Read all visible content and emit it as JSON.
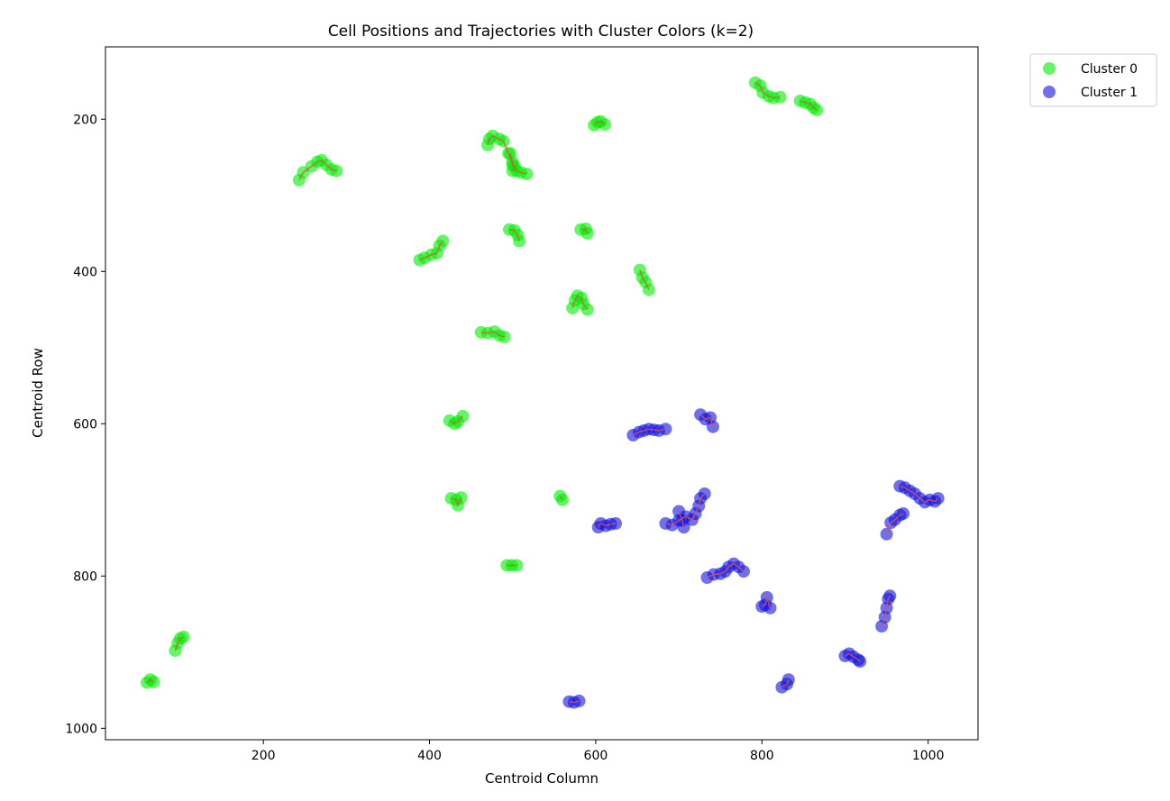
{
  "chart_data": {
    "type": "scatter",
    "title": "Cell Positions and Trajectories with Cluster Colors (k=2)",
    "xlabel": "Centroid Column",
    "ylabel": "Centroid Row",
    "xlim": [
      10,
      1060
    ],
    "ylim": [
      1015,
      105
    ],
    "y_inverted": true,
    "grid": false,
    "legend_position": "outside top-right",
    "x_ticks": [
      200,
      400,
      600,
      800,
      1000
    ],
    "y_ticks": [
      200,
      400,
      600,
      800,
      1000
    ],
    "x_tick_labels": [
      "200",
      "400",
      "600",
      "800",
      "1000"
    ],
    "y_tick_labels": [
      "200",
      "400",
      "600",
      "800",
      "1000"
    ],
    "trajectory_color": "#e05050",
    "series": [
      {
        "name": "Cluster 0",
        "color": "#00ee00",
        "trajectories": [
          [
            [
              243,
              280
            ],
            [
              248,
              270
            ],
            [
              258,
              262
            ],
            [
              265,
              256
            ],
            [
              270,
              254
            ],
            [
              276,
              260
            ],
            [
              282,
              266
            ],
            [
              288,
              268
            ]
          ],
          [
            [
              470,
              234
            ],
            [
              472,
              226
            ],
            [
              476,
              222
            ],
            [
              484,
              226
            ],
            [
              489,
              229
            ],
            [
              495,
              245
            ],
            [
              500,
              260
            ],
            [
              505,
              268
            ],
            [
              510,
              270
            ],
            [
              517,
              272
            ]
          ],
          [
            [
              497,
              245
            ],
            [
              500,
              256
            ],
            [
              502,
              262
            ],
            [
              500,
              268
            ]
          ],
          [
            [
              598,
              208
            ],
            [
              602,
              204
            ],
            [
              606,
              203
            ],
            [
              611,
              207
            ]
          ],
          [
            [
              792,
              152
            ],
            [
              798,
              156
            ],
            [
              801,
              165
            ],
            [
              808,
              170
            ],
            [
              814,
              172
            ],
            [
              822,
              171
            ]
          ],
          [
            [
              846,
              176
            ],
            [
              852,
              178
            ],
            [
              858,
              180
            ],
            [
              862,
              185
            ],
            [
              866,
              188
            ]
          ],
          [
            [
              388,
              385
            ],
            [
              394,
              382
            ],
            [
              402,
              378
            ],
            [
              409,
              376
            ],
            [
              412,
              366
            ],
            [
              416,
              360
            ]
          ],
          [
            [
              496,
              345
            ],
            [
              502,
              346
            ],
            [
              506,
              352
            ],
            [
              508,
              360
            ]
          ],
          [
            [
              582,
              345
            ],
            [
              588,
              344
            ],
            [
              590,
              350
            ]
          ],
          [
            [
              653,
              398
            ],
            [
              656,
              408
            ],
            [
              660,
              414
            ],
            [
              664,
              424
            ]
          ],
          [
            [
              572,
              448
            ],
            [
              575,
              438
            ],
            [
              578,
              432
            ],
            [
              583,
              435
            ],
            [
              585,
              443
            ],
            [
              590,
              450
            ]
          ],
          [
            [
              462,
              480
            ],
            [
              470,
              481
            ],
            [
              478,
              479
            ],
            [
              484,
              484
            ],
            [
              490,
              486
            ]
          ],
          [
            [
              424,
              596
            ],
            [
              430,
              600
            ],
            [
              434,
              597
            ],
            [
              440,
              590
            ]
          ],
          [
            [
              426,
              698
            ],
            [
              432,
              700
            ],
            [
              434,
              707
            ],
            [
              438,
              697
            ]
          ],
          [
            [
              557,
              695
            ],
            [
              560,
              700
            ]
          ],
          [
            [
              493,
              786
            ],
            [
              499,
              786
            ],
            [
              505,
              786
            ]
          ],
          [
            [
              94,
              898
            ],
            [
              97,
              888
            ],
            [
              100,
              882
            ],
            [
              104,
              880
            ]
          ],
          [
            [
              60,
              940
            ],
            [
              64,
              936
            ],
            [
              68,
              939
            ]
          ]
        ]
      },
      {
        "name": "Cluster 1",
        "color": "#1010e0",
        "trajectories": [
          [
            [
              645,
              615
            ],
            [
              652,
              611
            ],
            [
              658,
              609
            ],
            [
              664,
              607
            ],
            [
              670,
              608
            ],
            [
              676,
              609
            ],
            [
              684,
              607
            ]
          ],
          [
            [
              726,
              588
            ],
            [
              732,
              594
            ],
            [
              738,
              592
            ],
            [
              741,
              604
            ]
          ],
          [
            [
              603,
              736
            ],
            [
              606,
              731
            ],
            [
              612,
              734
            ],
            [
              618,
              732
            ],
            [
              624,
              731
            ]
          ],
          [
            [
              684,
              731
            ],
            [
              692,
              733
            ],
            [
              700,
              727
            ],
            [
              708,
              722
            ],
            [
              716,
              726
            ],
            [
              720,
              718
            ],
            [
              724,
              708
            ],
            [
              726,
              698
            ],
            [
              731,
              692
            ]
          ],
          [
            [
              700,
              715
            ],
            [
              704,
              727
            ],
            [
              706,
              736
            ]
          ],
          [
            [
              734,
              802
            ],
            [
              742,
              798
            ],
            [
              750,
              797
            ],
            [
              756,
              794
            ],
            [
              760,
              788
            ],
            [
              766,
              784
            ],
            [
              772,
              788
            ],
            [
              778,
              794
            ]
          ],
          [
            [
              800,
              840
            ],
            [
              804,
              838
            ],
            [
              806,
              828
            ],
            [
              810,
              842
            ]
          ],
          [
            [
              824,
              946
            ],
            [
              830,
              942
            ],
            [
              832,
              936
            ]
          ],
          [
            [
              900,
              905
            ],
            [
              905,
              902
            ],
            [
              910,
              906
            ],
            [
              916,
              910
            ],
            [
              918,
              912
            ]
          ],
          [
            [
              944,
              866
            ],
            [
              948,
              854
            ],
            [
              950,
              842
            ],
            [
              952,
              830
            ],
            [
              954,
              826
            ]
          ],
          [
            [
              950,
              745
            ],
            [
              955,
              730
            ],
            [
              960,
              726
            ],
            [
              966,
              720
            ],
            [
              970,
              718
            ]
          ],
          [
            [
              966,
              682
            ],
            [
              972,
              684
            ],
            [
              978,
              688
            ],
            [
              984,
              692
            ],
            [
              990,
              698
            ],
            [
              996,
              703
            ],
            [
              1002,
              700
            ],
            [
              1008,
              702
            ],
            [
              1012,
              698
            ]
          ],
          [
            [
              568,
              965
            ],
            [
              574,
              966
            ],
            [
              580,
              964
            ]
          ]
        ]
      }
    ]
  }
}
